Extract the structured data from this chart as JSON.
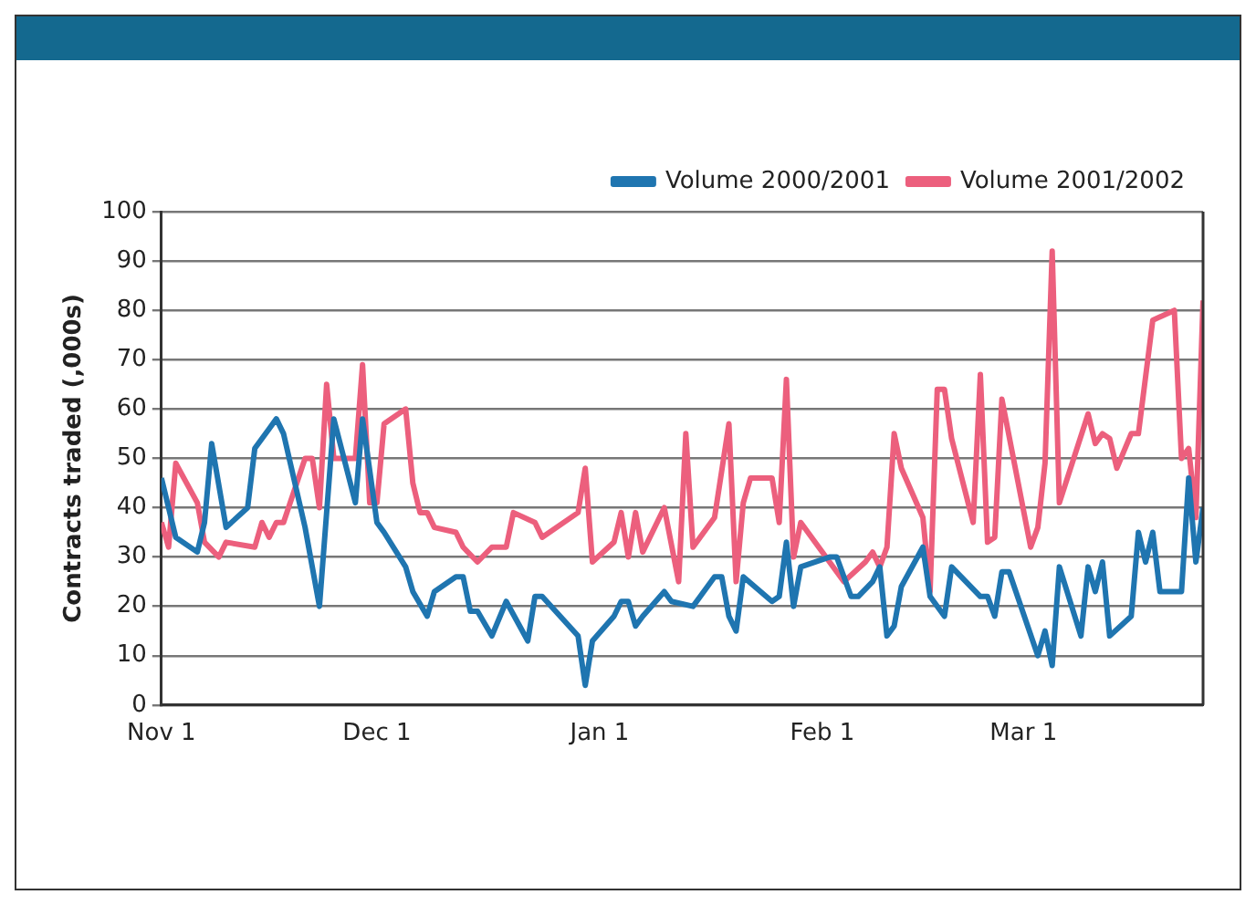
{
  "chart_data": {
    "type": "line",
    "ylabel": "Contracts traded (,000s)",
    "xlim": [
      "2001-11-01",
      "2002-03-26"
    ],
    "xticks": [
      {
        "value": "2001-11-01",
        "label": "Nov 1"
      },
      {
        "value": "2001-12-01",
        "label": "Dec 1"
      },
      {
        "value": "2002-01-01",
        "label": "Jan 1"
      },
      {
        "value": "2002-02-01",
        "label": "Feb 1"
      },
      {
        "value": "2002-03-01",
        "label": "Mar 1"
      }
    ],
    "ylim": [
      0,
      100
    ],
    "yticks": [
      0,
      10,
      20,
      30,
      40,
      50,
      60,
      70,
      80,
      90,
      100
    ],
    "grid": "y",
    "legend": "top right",
    "marker": "none",
    "line_style": "solid",
    "series": [
      {
        "name": "Volume 2000/2001",
        "color": "#1f75b0",
        "x": [
          "2001-11-01",
          "2001-11-03",
          "2001-11-06",
          "2001-11-07",
          "2001-11-08",
          "2001-11-10",
          "2001-11-13",
          "2001-11-14",
          "2001-11-16",
          "2001-11-17",
          "2001-11-18",
          "2001-11-21",
          "2001-11-23",
          "2001-11-25",
          "2001-11-28",
          "2001-11-29",
          "2001-12-01",
          "2001-12-02",
          "2001-12-05",
          "2001-12-06",
          "2001-12-08",
          "2001-12-09",
          "2001-12-12",
          "2001-12-13",
          "2001-12-14",
          "2001-12-15",
          "2001-12-17",
          "2001-12-19",
          "2001-12-22",
          "2001-12-23",
          "2001-12-24",
          "2001-12-29",
          "2001-12-30",
          "2001-12-31",
          "2002-01-03",
          "2002-01-04",
          "2002-01-05",
          "2002-01-06",
          "2002-01-07",
          "2002-01-10",
          "2002-01-11",
          "2002-01-14",
          "2002-01-17",
          "2002-01-18",
          "2002-01-19",
          "2002-01-20",
          "2002-01-21",
          "2002-01-25",
          "2002-01-26",
          "2002-01-27",
          "2002-01-28",
          "2002-01-29",
          "2002-02-02",
          "2002-02-03",
          "2002-02-05",
          "2002-02-06",
          "2002-02-08",
          "2002-02-09",
          "2002-02-10",
          "2002-02-11",
          "2002-02-12",
          "2002-02-15",
          "2002-02-16",
          "2002-02-18",
          "2002-02-19",
          "2002-02-23",
          "2002-02-24",
          "2002-02-25",
          "2002-02-26",
          "2002-02-27",
          "2002-03-03",
          "2002-03-04",
          "2002-03-05",
          "2002-03-06",
          "2002-03-09",
          "2002-03-10",
          "2002-03-11",
          "2002-03-12",
          "2002-03-13",
          "2002-03-16",
          "2002-03-17",
          "2002-03-18",
          "2002-03-19",
          "2002-03-20",
          "2002-03-23",
          "2002-03-24",
          "2002-03-25",
          "2002-03-26"
        ],
        "values": [
          46,
          34,
          31,
          37,
          53,
          36,
          40,
          52,
          56,
          58,
          55,
          36,
          20,
          58,
          41,
          58,
          37,
          35,
          28,
          23,
          18,
          23,
          26,
          26,
          19,
          19,
          14,
          21,
          13,
          22,
          22,
          14,
          4,
          13,
          18,
          21,
          21,
          16,
          18,
          23,
          21,
          20,
          26,
          26,
          18,
          15,
          26,
          21,
          22,
          33,
          20,
          28,
          30,
          30,
          22,
          22,
          25,
          28,
          14,
          16,
          24,
          32,
          22,
          18,
          28,
          22,
          22,
          18,
          27,
          27,
          10,
          15,
          8,
          28,
          14,
          28,
          23,
          29,
          14,
          18,
          35,
          29,
          35,
          23,
          23,
          46,
          29,
          40
        ]
      },
      {
        "name": "Volume 2001/2002",
        "color": "#ec5f7d",
        "x": [
          "2001-11-01",
          "2001-11-02",
          "2001-11-03",
          "2001-11-06",
          "2001-11-07",
          "2001-11-09",
          "2001-11-10",
          "2001-11-14",
          "2001-11-15",
          "2001-11-16",
          "2001-11-17",
          "2001-11-18",
          "2001-11-21",
          "2001-11-22",
          "2001-11-23",
          "2001-11-24",
          "2001-11-25",
          "2001-11-28",
          "2001-11-29",
          "2001-11-30",
          "2001-12-01",
          "2001-12-02",
          "2001-12-05",
          "2001-12-06",
          "2001-12-07",
          "2001-12-08",
          "2001-12-09",
          "2001-12-12",
          "2001-12-13",
          "2001-12-15",
          "2001-12-17",
          "2001-12-19",
          "2001-12-20",
          "2001-12-23",
          "2001-12-24",
          "2001-12-29",
          "2001-12-30",
          "2001-12-31",
          "2002-01-03",
          "2002-01-04",
          "2002-01-05",
          "2002-01-06",
          "2002-01-07",
          "2002-01-10",
          "2002-01-12",
          "2002-01-13",
          "2002-01-14",
          "2002-01-17",
          "2002-01-19",
          "2002-01-20",
          "2002-01-21",
          "2002-01-22",
          "2002-01-25",
          "2002-01-26",
          "2002-01-27",
          "2002-01-28",
          "2002-01-29",
          "2002-02-04",
          "2002-02-07",
          "2002-02-08",
          "2002-02-09",
          "2002-02-10",
          "2002-02-11",
          "2002-02-12",
          "2002-02-15",
          "2002-02-16",
          "2002-02-17",
          "2002-02-18",
          "2002-02-19",
          "2002-02-22",
          "2002-02-23",
          "2002-02-24",
          "2002-02-25",
          "2002-02-26",
          "2002-03-02",
          "2002-03-03",
          "2002-03-04",
          "2002-03-05",
          "2002-03-06",
          "2002-03-10",
          "2002-03-11",
          "2002-03-12",
          "2002-03-13",
          "2002-03-14",
          "2002-03-16",
          "2002-03-17",
          "2002-03-19",
          "2002-03-22",
          "2002-03-23",
          "2002-03-24",
          "2002-03-25",
          "2002-03-26"
        ],
        "values": [
          37,
          32,
          49,
          41,
          33,
          30,
          33,
          32,
          37,
          34,
          37,
          37,
          50,
          50,
          40,
          65,
          50,
          50,
          69,
          41,
          41,
          57,
          60,
          45,
          39,
          39,
          36,
          35,
          32,
          29,
          32,
          32,
          39,
          37,
          34,
          39,
          48,
          29,
          33,
          39,
          30,
          39,
          31,
          40,
          25,
          55,
          32,
          38,
          57,
          25,
          41,
          46,
          46,
          37,
          66,
          30,
          37,
          25,
          29,
          31,
          28,
          32,
          55,
          48,
          38,
          23,
          64,
          64,
          54,
          37,
          67,
          33,
          34,
          62,
          32,
          36,
          49,
          92,
          41,
          59,
          53,
          55,
          54,
          48,
          55,
          55,
          78,
          80,
          50,
          52,
          38,
          82
        ]
      }
    ]
  }
}
